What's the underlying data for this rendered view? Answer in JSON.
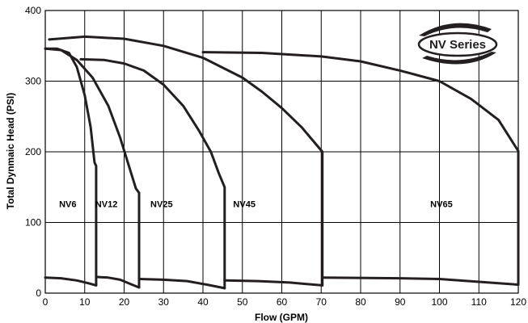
{
  "chart_data": {
    "type": "line",
    "title": "",
    "xlabel": "Flow (GPM)",
    "ylabel": "Total Dynmaic Head (PSI)",
    "xlim": [
      0,
      120
    ],
    "ylim": [
      0,
      400
    ],
    "x_ticks": [
      "0",
      "20",
      "40",
      "60",
      "80",
      "100",
      "120"
    ],
    "x_minor_ticks": [
      "10",
      "30",
      "50",
      "70",
      "90",
      "110"
    ],
    "y_ticks": [
      "0",
      "100",
      "200",
      "300",
      "400"
    ],
    "grid": true,
    "badge": "NV Series",
    "zone_labels": [
      {
        "text": "NV6",
        "x": 5.7,
        "y": 122
      },
      {
        "text": "NV12",
        "x": 15.5,
        "y": 122
      },
      {
        "text": "NV25",
        "x": 29.5,
        "y": 122
      },
      {
        "text": "NV45",
        "x": 50.5,
        "y": 122
      },
      {
        "text": "NV65",
        "x": 100.5,
        "y": 122
      }
    ],
    "series": [
      {
        "upper": [
          [
            0,
            346
          ],
          [
            3,
            346
          ],
          [
            6,
            340
          ],
          [
            8,
            320
          ],
          [
            10,
            280
          ],
          [
            11.5,
            235
          ],
          [
            12.5,
            185
          ],
          [
            12.9,
            180
          ]
        ],
        "lower": [
          [
            0,
            22
          ],
          [
            4,
            21
          ],
          [
            8,
            18
          ],
          [
            11,
            14
          ],
          [
            12.9,
            11
          ]
        ]
      },
      {
        "upper": [
          [
            0,
            346
          ],
          [
            4,
            344
          ],
          [
            8,
            330
          ],
          [
            12,
            305
          ],
          [
            16,
            265
          ],
          [
            19,
            220
          ],
          [
            21.5,
            175
          ],
          [
            23,
            148
          ],
          [
            23.8,
            142
          ]
        ],
        "lower": [
          [
            12.9,
            23
          ],
          [
            16,
            22
          ],
          [
            19,
            19
          ],
          [
            22,
            12
          ],
          [
            23.8,
            8
          ]
        ]
      },
      {
        "upper": [
          [
            9,
            331
          ],
          [
            15,
            330
          ],
          [
            20,
            325
          ],
          [
            25,
            315
          ],
          [
            30,
            295
          ],
          [
            35,
            265
          ],
          [
            39,
            230
          ],
          [
            42,
            200
          ],
          [
            44,
            170
          ],
          [
            45.5,
            150
          ]
        ],
        "lower": [
          [
            23.8,
            20
          ],
          [
            30,
            19
          ],
          [
            36,
            17
          ],
          [
            41,
            12
          ],
          [
            45.5,
            7
          ]
        ]
      },
      {
        "upper": [
          [
            1,
            359
          ],
          [
            10,
            363
          ],
          [
            20,
            360
          ],
          [
            30,
            350
          ],
          [
            40,
            333
          ],
          [
            50,
            305
          ],
          [
            55,
            285
          ],
          [
            60,
            262
          ],
          [
            65,
            235
          ],
          [
            70.3,
            200
          ]
        ],
        "lower": [
          [
            45.5,
            18
          ],
          [
            54,
            17
          ],
          [
            62,
            15
          ],
          [
            70.3,
            11
          ]
        ]
      },
      {
        "upper": [
          [
            40,
            341
          ],
          [
            55,
            340
          ],
          [
            70,
            335
          ],
          [
            80,
            328
          ],
          [
            90,
            315
          ],
          [
            100,
            300
          ],
          [
            108,
            275
          ],
          [
            115,
            245
          ],
          [
            120,
            201
          ]
        ],
        "lower": [
          [
            70.3,
            22
          ],
          [
            90,
            21
          ],
          [
            100,
            20
          ],
          [
            110,
            16
          ],
          [
            120,
            12
          ]
        ]
      }
    ]
  }
}
